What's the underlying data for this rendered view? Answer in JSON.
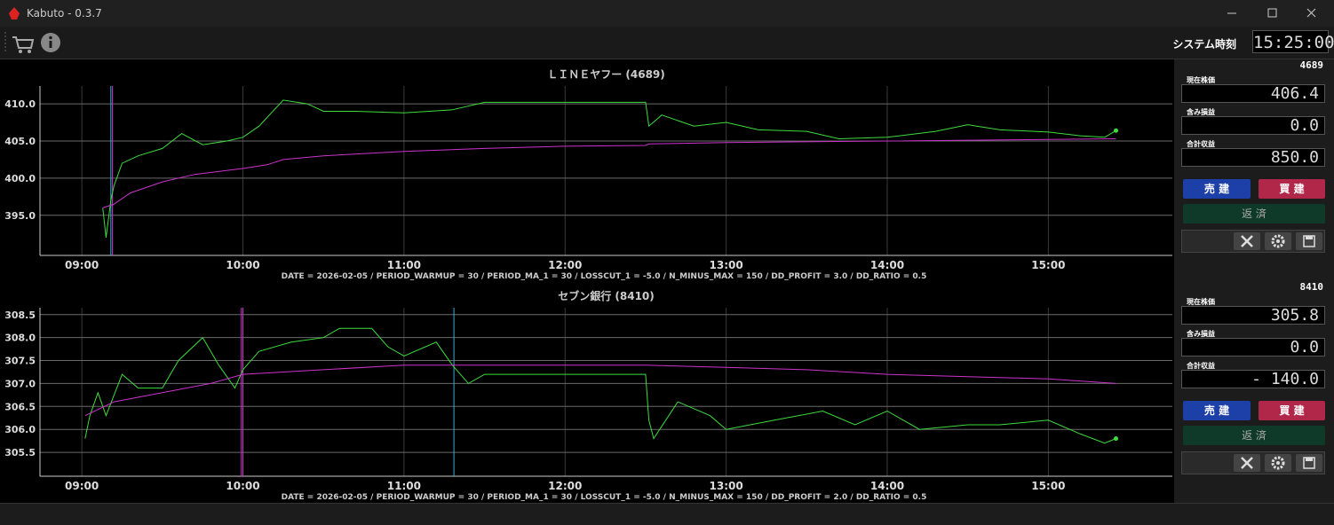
{
  "window": {
    "title": "Kabuto - 0.3.7"
  },
  "toolbar": {
    "clock_label": "システム時刻",
    "clock": "15:25:00"
  },
  "chart_data": [
    {
      "type": "line",
      "title": "ＬＩＮＥヤフー (4689)",
      "subtitle": "DATE = 2026-02-05 / PERIOD_WARMUP = 30 / PERIOD_MA_1 = 30 / LOSSCUT_1 = -5.0 / N_MINUS_MAX = 150 / DD_PROFIT = 3.0 / DD_RATIO = 0.5",
      "xlim": [
        8.74,
        15.77
      ],
      "ylim": [
        389.6,
        412.4
      ],
      "xticks": [
        {
          "value": 9,
          "label": "09:00"
        },
        {
          "value": 10,
          "label": "10:00"
        },
        {
          "value": 11,
          "label": "11:00"
        },
        {
          "value": 12,
          "label": "12:00"
        },
        {
          "value": 13,
          "label": "13:00"
        },
        {
          "value": 14,
          "label": "14:00"
        },
        {
          "value": 15,
          "label": "15:00"
        }
      ],
      "yticks": [
        {
          "value": 395,
          "label": "395.0"
        },
        {
          "value": 400,
          "label": "400.0"
        },
        {
          "value": 405,
          "label": "405.0"
        },
        {
          "value": 410,
          "label": "410.0"
        }
      ],
      "grid": true,
      "vlines": [
        {
          "x": 9.18,
          "color": "#3aa8d8"
        },
        {
          "x": 9.19,
          "color": "#cc33cc"
        }
      ],
      "series": [
        {
          "color": "#3ddc3d",
          "x": [
            9.13,
            9.15,
            9.18,
            9.2,
            9.25,
            9.35,
            9.5,
            9.62,
            9.75,
            9.9,
            10.0,
            10.1,
            10.25,
            10.4,
            10.5,
            10.7,
            11.0,
            11.3,
            11.5,
            12.5,
            12.52,
            12.6,
            12.8,
            13.0,
            13.2,
            13.5,
            13.7,
            14.0,
            14.3,
            14.5,
            14.7,
            15.0,
            15.2,
            15.35,
            15.42
          ],
          "values": [
            396,
            392,
            397,
            399,
            402,
            403,
            404,
            406,
            404.5,
            405,
            405.5,
            407,
            410.5,
            410,
            409,
            409,
            408.8,
            409.2,
            410.2,
            410.2,
            407,
            408.5,
            407,
            407.5,
            406.5,
            406.3,
            405.3,
            405.5,
            406.3,
            407.2,
            406.5,
            406.2,
            405.7,
            405.5,
            406.4
          ]
        },
        {
          "color": "#cc33cc",
          "x": [
            9.13,
            9.2,
            9.3,
            9.5,
            9.7,
            10.0,
            10.15,
            10.25,
            10.5,
            11.0,
            11.5,
            12.0,
            12.5,
            12.52,
            13.0,
            14.0,
            15.0,
            15.42
          ],
          "values": [
            396,
            396.5,
            398,
            399.5,
            400.5,
            401.3,
            401.8,
            402.5,
            403,
            403.6,
            404.0,
            404.3,
            404.4,
            404.6,
            404.8,
            405.0,
            405.2,
            405.3
          ]
        }
      ]
    },
    {
      "type": "line",
      "title": "セブン銀行 (8410)",
      "subtitle": "DATE = 2026-02-05 / PERIOD_WARMUP = 30 / PERIOD_MA_1 = 30 / LOSSCUT_1 = -5.0 / N_MINUS_MAX = 150 / DD_PROFIT = 2.0 / DD_RATIO = 0.5",
      "xlim": [
        8.74,
        15.77
      ],
      "ylim": [
        304.98,
        308.65
      ],
      "xticks": [
        {
          "value": 9,
          "label": "09:00"
        },
        {
          "value": 10,
          "label": "10:00"
        },
        {
          "value": 11,
          "label": "11:00"
        },
        {
          "value": 12,
          "label": "12:00"
        },
        {
          "value": 13,
          "label": "13:00"
        },
        {
          "value": 14,
          "label": "14:00"
        },
        {
          "value": 15,
          "label": "15:00"
        }
      ],
      "yticks": [
        305.5,
        {
          "value": 306,
          "label": "306.0"
        },
        306.5,
        {
          "value": 307,
          "label": "307.0"
        },
        307.5,
        {
          "value": 308,
          "label": "308.0"
        },
        308.5
      ],
      "grid": true,
      "vlines": [
        {
          "x": 9.99,
          "color": "#cc33cc"
        },
        {
          "x": 10.0,
          "color": "#cc33cc"
        },
        {
          "x": 11.31,
          "color": "#3aa8d8"
        }
      ],
      "series": [
        {
          "color": "#3ddc3d",
          "x": [
            9.02,
            9.05,
            9.1,
            9.15,
            9.25,
            9.35,
            9.5,
            9.6,
            9.75,
            9.85,
            9.95,
            10.0,
            10.1,
            10.3,
            10.5,
            10.6,
            10.8,
            10.9,
            11.0,
            11.2,
            11.3,
            11.4,
            11.5,
            12.5,
            12.52,
            12.55,
            12.7,
            12.9,
            13.0,
            13.3,
            13.6,
            13.8,
            14.0,
            14.2,
            14.5,
            14.7,
            15.0,
            15.2,
            15.35,
            15.42
          ],
          "values": [
            305.8,
            306.3,
            306.8,
            306.3,
            307.2,
            306.9,
            306.9,
            307.5,
            308.0,
            307.4,
            306.9,
            307.3,
            307.7,
            307.9,
            308.0,
            308.2,
            308.2,
            307.8,
            307.6,
            307.9,
            307.4,
            307.0,
            307.2,
            307.2,
            306.2,
            305.8,
            306.6,
            306.3,
            306.0,
            306.2,
            306.4,
            306.1,
            306.4,
            306.0,
            306.1,
            306.1,
            306.2,
            305.9,
            305.7,
            305.8
          ]
        },
        {
          "color": "#cc33cc",
          "x": [
            9.02,
            9.2,
            9.5,
            9.8,
            10.0,
            10.5,
            11.0,
            11.5,
            12.0,
            12.5,
            13.0,
            13.5,
            14.0,
            14.5,
            15.0,
            15.42
          ],
          "values": [
            306.3,
            306.6,
            306.8,
            307.0,
            307.2,
            307.3,
            307.4,
            307.4,
            307.4,
            307.4,
            307.35,
            307.3,
            307.2,
            307.15,
            307.1,
            307.0
          ]
        }
      ]
    }
  ],
  "panels": [
    {
      "symbol": "4689",
      "fields": [
        {
          "label": "現在株価",
          "value": "406.4"
        },
        {
          "label": "含み損益",
          "value": "0.0"
        },
        {
          "label": "合計収益",
          "value": "850.0"
        }
      ],
      "buttons": [
        "売 建",
        "買 建",
        "返 済"
      ]
    },
    {
      "symbol": "8410",
      "fields": [
        {
          "label": "現在株価",
          "value": "305.8"
        },
        {
          "label": "含み損益",
          "value": "0.0"
        },
        {
          "label": "合計収益",
          "value": "- 140.0"
        }
      ],
      "buttons": [
        "売 建",
        "買 建",
        "返 済"
      ]
    }
  ]
}
